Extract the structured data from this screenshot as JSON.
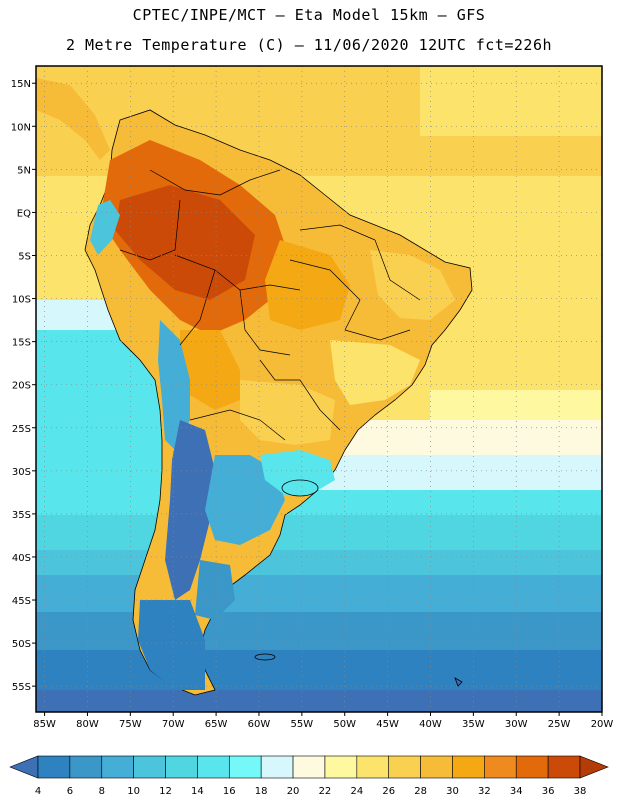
{
  "header": {
    "title_line1": "CPTEC/INPE/MCT –  Eta Model 15km – GFS",
    "title_line2": "2 Metre Temperature (C) – 11/06/2020 12UTC fct=226h"
  },
  "map": {
    "lat_ticks": [
      {
        "value": 15,
        "label": "15N"
      },
      {
        "value": 10,
        "label": "10N"
      },
      {
        "value": 5,
        "label": "5N"
      },
      {
        "value": 0,
        "label": "EQ"
      },
      {
        "value": -5,
        "label": "5S"
      },
      {
        "value": -10,
        "label": "10S"
      },
      {
        "value": -15,
        "label": "15S"
      },
      {
        "value": -20,
        "label": "20S"
      },
      {
        "value": -25,
        "label": "25S"
      },
      {
        "value": -30,
        "label": "30S"
      },
      {
        "value": -35,
        "label": "35S"
      },
      {
        "value": -40,
        "label": "40S"
      },
      {
        "value": -45,
        "label": "45S"
      },
      {
        "value": -50,
        "label": "50S"
      },
      {
        "value": -55,
        "label": "55S"
      }
    ],
    "lon_ticks": [
      {
        "value": -85,
        "label": "85W"
      },
      {
        "value": -80,
        "label": "80W"
      },
      {
        "value": -75,
        "label": "75W"
      },
      {
        "value": -70,
        "label": "70W"
      },
      {
        "value": -65,
        "label": "65W"
      },
      {
        "value": -60,
        "label": "60W"
      },
      {
        "value": -55,
        "label": "55W"
      },
      {
        "value": -50,
        "label": "50W"
      },
      {
        "value": -45,
        "label": "45W"
      },
      {
        "value": -40,
        "label": "40W"
      },
      {
        "value": -35,
        "label": "35W"
      },
      {
        "value": -30,
        "label": "30W"
      },
      {
        "value": -25,
        "label": "25W"
      },
      {
        "value": -20,
        "label": "20W"
      }
    ],
    "lon_range": [
      -86,
      -20
    ],
    "lat_range": [
      -58,
      17
    ]
  },
  "colorbar": {
    "labels": [
      "4",
      "6",
      "8",
      "10",
      "12",
      "14",
      "16",
      "18",
      "20",
      "22",
      "24",
      "26",
      "28",
      "30",
      "32",
      "34",
      "36",
      "38"
    ],
    "colors": [
      "#3d70b4",
      "#2f82c0",
      "#3c97c9",
      "#44aed6",
      "#4cc4dc",
      "#4fd6e0",
      "#58e6ec",
      "#74f8f8",
      "#d6f7fc",
      "#fefae0",
      "#fef8a0",
      "#fce46c",
      "#fad050",
      "#f6bc38",
      "#f4a814",
      "#ee8a1e",
      "#e26a0a",
      "#cc4a08",
      "#b43c06"
    ]
  }
}
